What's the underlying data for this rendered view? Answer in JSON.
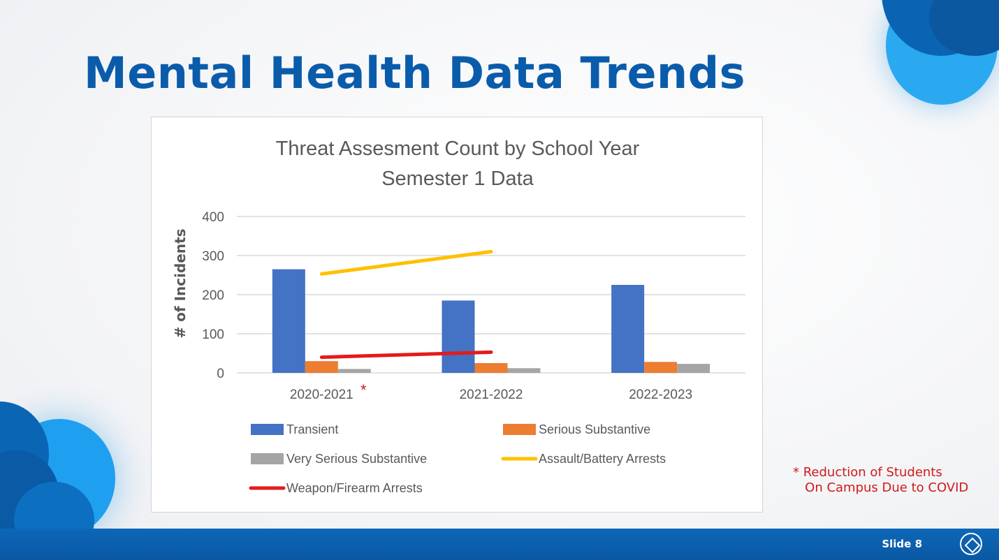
{
  "slide": {
    "title": "Mental Health Data Trends",
    "slide_number": "Slide 8",
    "footnote_line1": "* Reduction of Students",
    "footnote_line2": "   On Campus Due to COVID"
  },
  "colors": {
    "title": "#0a5cab",
    "footer": "#0b5ea8",
    "footnote": "#d01a1a"
  },
  "icons": {
    "footer_logo": "district-logo-icon"
  },
  "chart_data": {
    "type": "bar",
    "title": "Threat Assesment Count by School Year",
    "subtitle": "Semester 1 Data",
    "ylabel": "# of Incidents",
    "xlabel": "",
    "ylim": [
      0,
      400
    ],
    "yticks": [
      0,
      100,
      200,
      300,
      400
    ],
    "grid": true,
    "legend_position": "bottom",
    "categories": [
      "2020-2021",
      "2021-2022",
      "2022-2023"
    ],
    "category_marker": {
      "category_index": 0,
      "text": "*"
    },
    "series": [
      {
        "name": "Transient",
        "kind": "bar",
        "color": "#4472c4",
        "values": [
          265,
          185,
          225
        ]
      },
      {
        "name": "Serious Substantive",
        "kind": "bar",
        "color": "#ed7d31",
        "values": [
          30,
          25,
          28
        ]
      },
      {
        "name": "Very Serious Substantive",
        "kind": "bar",
        "color": "#a5a5a5",
        "values": [
          10,
          12,
          23
        ]
      },
      {
        "name": "Assault/Battery Arrests",
        "kind": "line",
        "color": "#ffc000",
        "values": [
          253,
          310,
          null
        ]
      },
      {
        "name": "Weapon/Firearm Arrests",
        "kind": "line",
        "color": "#e41b1b",
        "values": [
          40,
          53,
          null
        ]
      }
    ]
  }
}
